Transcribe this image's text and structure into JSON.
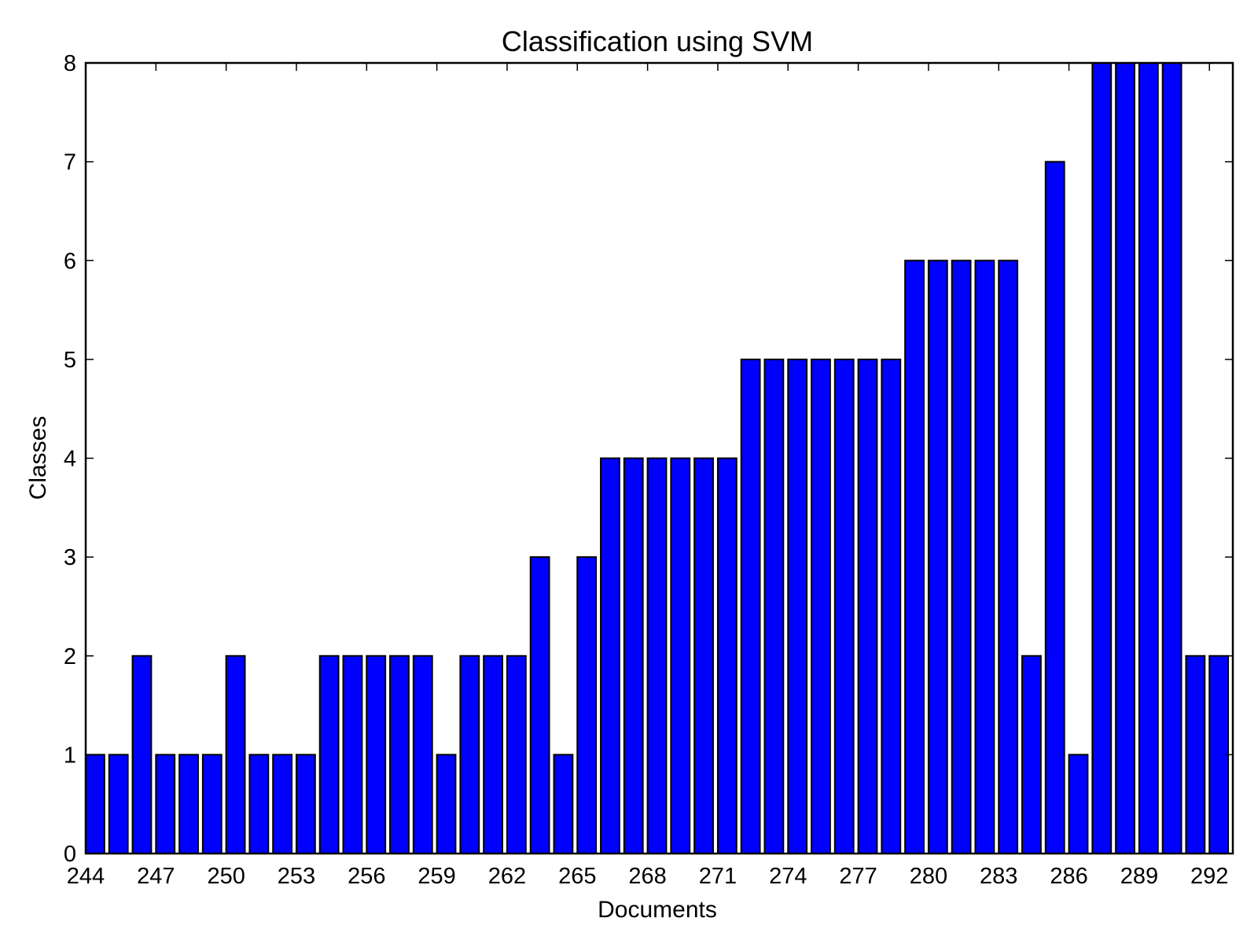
{
  "chart_data": {
    "type": "bar",
    "title": "Classification using SVM",
    "xlabel": "Documents",
    "ylabel": "Classes",
    "xlim": [
      244,
      293
    ],
    "ylim": [
      0,
      8
    ],
    "x_ticks": [
      244,
      247,
      250,
      253,
      256,
      259,
      262,
      265,
      268,
      271,
      274,
      277,
      280,
      283,
      286,
      289,
      292
    ],
    "y_ticks": [
      0,
      1,
      2,
      3,
      4,
      5,
      6,
      7,
      8
    ],
    "x_tick_labels": [
      "244",
      "247",
      "250",
      "253",
      "256",
      "259",
      "262",
      "265",
      "268",
      "271",
      "274",
      "277",
      "280",
      "283",
      "286",
      "289",
      "292"
    ],
    "y_tick_labels": [
      "0",
      "1",
      "2",
      "3",
      "4",
      "5",
      "6",
      "7",
      "8"
    ],
    "grid": false,
    "bar_color": "#0000ff",
    "edge_color": "#000000",
    "categories": [
      244,
      245,
      246,
      247,
      248,
      249,
      250,
      251,
      252,
      253,
      254,
      255,
      256,
      257,
      258,
      259,
      260,
      261,
      262,
      263,
      264,
      265,
      266,
      267,
      268,
      269,
      270,
      271,
      272,
      273,
      274,
      275,
      276,
      277,
      278,
      279,
      280,
      281,
      282,
      283,
      284,
      285,
      286,
      287,
      288,
      289,
      290,
      291,
      292
    ],
    "values": [
      1,
      1,
      2,
      1,
      1,
      1,
      2,
      1,
      1,
      1,
      2,
      2,
      2,
      2,
      2,
      1,
      2,
      2,
      2,
      3,
      1,
      3,
      4,
      4,
      4,
      4,
      4,
      4,
      5,
      5,
      5,
      5,
      5,
      5,
      5,
      6,
      6,
      6,
      6,
      6,
      2,
      7,
      1,
      8,
      8,
      8,
      8,
      2,
      2
    ]
  }
}
